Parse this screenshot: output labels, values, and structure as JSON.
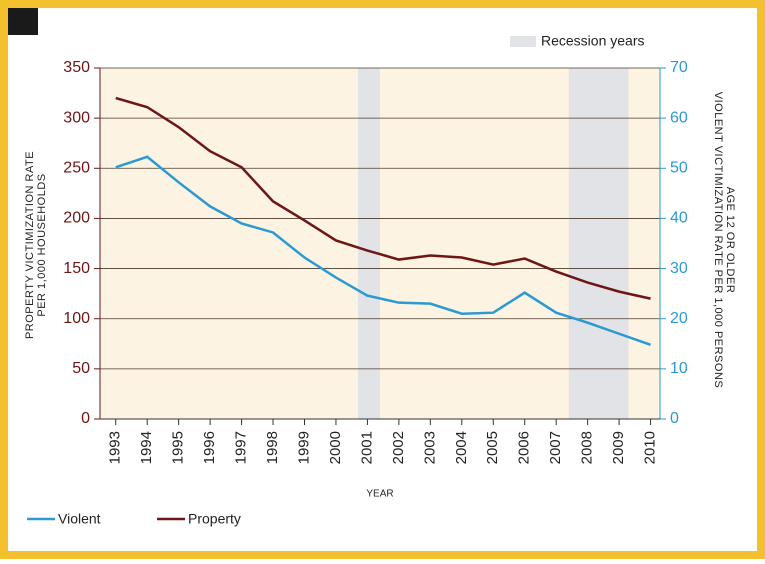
{
  "chart_data": {
    "type": "line",
    "x_label": "YEAR",
    "y_label": [
      "PROPERTY VICTIMIZATION RATE",
      "PER 1,000 HOUSEHOLDS"
    ],
    "y2_label": [
      "VIOLENT VICTIMIZATION RATE PER 1,000 PERSONS",
      "AGE 12 OR OLDER"
    ],
    "x": [
      1993,
      1994,
      1995,
      1996,
      1997,
      1998,
      1999,
      2000,
      2001,
      2002,
      2003,
      2004,
      2005,
      2006,
      2007,
      2008,
      2009,
      2010
    ],
    "xlim": [
      1992.5,
      2010.3
    ],
    "ylim": [
      0,
      350
    ],
    "yticks": [
      0,
      50,
      100,
      150,
      200,
      250,
      300,
      350
    ],
    "y2lim": [
      0,
      70
    ],
    "y2ticks": [
      0,
      10,
      20,
      30,
      40,
      50,
      60,
      70
    ],
    "grid": true,
    "recession_label": "Recession years",
    "recession_color": "#e1e3e6",
    "recession_bands": [
      [
        2000.7,
        2001.4
      ],
      [
        2007.4,
        2009.3
      ]
    ],
    "series": [
      {
        "name": "Violent",
        "color": "#2b9ad3",
        "axis": "y2",
        "values": [
          50.2,
          52.3,
          47.2,
          42.4,
          39,
          37.2,
          32.2,
          28.2,
          24.6,
          23.2,
          23,
          21,
          21.2,
          25.2,
          21.2,
          19.2,
          17,
          14.8
        ]
      },
      {
        "name": "Property",
        "color": "#6e1515",
        "values": [
          320,
          311,
          291,
          267,
          251,
          217,
          198,
          178,
          168,
          159,
          163,
          161,
          154,
          160,
          147,
          136,
          127,
          120
        ]
      }
    ]
  }
}
